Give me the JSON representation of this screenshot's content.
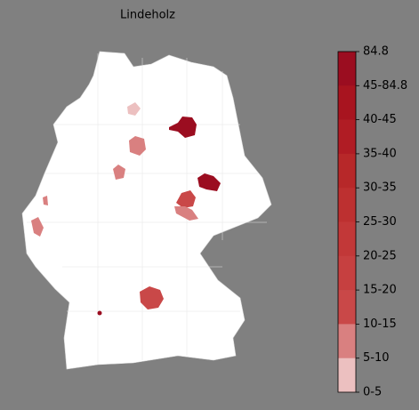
{
  "title": "Lindeholz",
  "legend": {
    "labels": [
      "84.8",
      "45-84.8",
      "40-45",
      "35-40",
      "30-35",
      "25-30",
      "20-25",
      "15-20",
      "10-15",
      "5-10",
      "0-5"
    ],
    "colors": [
      "#9b0d20",
      "#a8141f",
      "#b01c24",
      "#b72829",
      "#bd3030",
      "#c23838",
      "#c64040",
      "#c94848",
      "#d98080",
      "#ecc0c0",
      "#ffffff"
    ]
  }
}
